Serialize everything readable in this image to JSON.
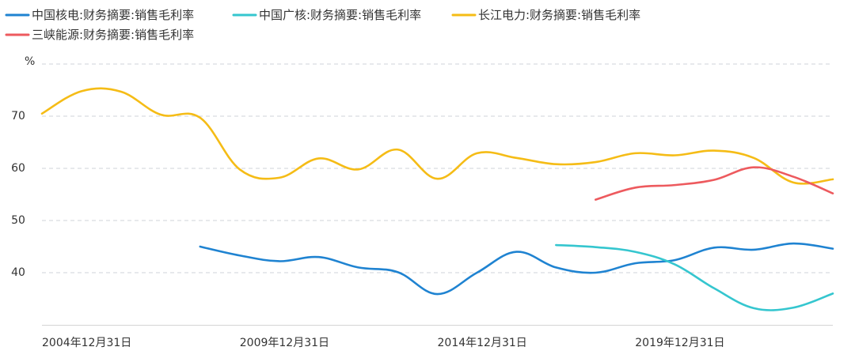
{
  "chart_data": {
    "type": "line",
    "title": "",
    "xlabel": "",
    "ylabel": "%",
    "ylim": [
      30,
      80
    ],
    "yticks": [
      40,
      50,
      60,
      70
    ],
    "x": [
      "2004-12-31",
      "2005-12-31",
      "2006-12-31",
      "2007-12-31",
      "2008-12-31",
      "2009-12-31",
      "2010-12-31",
      "2011-12-31",
      "2012-12-31",
      "2013-12-31",
      "2014-12-31",
      "2015-12-31",
      "2016-12-31",
      "2017-12-31",
      "2018-12-31",
      "2019-12-31",
      "2020-12-31",
      "2021-12-31",
      "2022-12-31",
      "2023-12-31",
      "2024-12-31"
    ],
    "xtick_labels": [
      {
        "index": 0,
        "label": "2004年12月31日"
      },
      {
        "index": 5,
        "label": "2009年12月31日"
      },
      {
        "index": 10,
        "label": "2014年12月31日"
      },
      {
        "index": 15,
        "label": "2019年12月31日"
      }
    ],
    "series": [
      {
        "name": "中国核电:财务摘要:销售毛利率",
        "color": "#1f83d1",
        "values": [
          null,
          null,
          null,
          null,
          45.0,
          43.3,
          42.2,
          43.0,
          41.0,
          40.1,
          35.9,
          40.0,
          44.0,
          41.0,
          40.0,
          41.8,
          42.4,
          44.8,
          44.4,
          45.6,
          44.6
        ]
      },
      {
        "name": "中国广核:财务摘要:销售毛利率",
        "color": "#35c6cf",
        "values": [
          null,
          null,
          null,
          null,
          null,
          null,
          null,
          null,
          null,
          null,
          null,
          null,
          null,
          45.3,
          44.9,
          44.0,
          41.6,
          37.0,
          33.2,
          33.3,
          36.0
        ]
      },
      {
        "name": "长江电力:财务摘要:销售毛利率",
        "color": "#f5bc16",
        "values": [
          70.5,
          74.8,
          74.7,
          70.3,
          69.7,
          59.8,
          58.2,
          61.9,
          59.8,
          63.6,
          58.0,
          62.9,
          62.0,
          60.8,
          61.2,
          62.9,
          62.5,
          63.4,
          62.0,
          57.3,
          57.9
        ]
      },
      {
        "name": "三峡能源:财务摘要:销售毛利率",
        "color": "#ed5a5e",
        "values": [
          null,
          null,
          null,
          null,
          null,
          null,
          null,
          null,
          null,
          null,
          null,
          null,
          null,
          null,
          54.0,
          56.3,
          56.8,
          57.8,
          60.2,
          58.4,
          55.2
        ]
      }
    ],
    "legend": "top-left",
    "grid": "horizontal-dashed"
  }
}
